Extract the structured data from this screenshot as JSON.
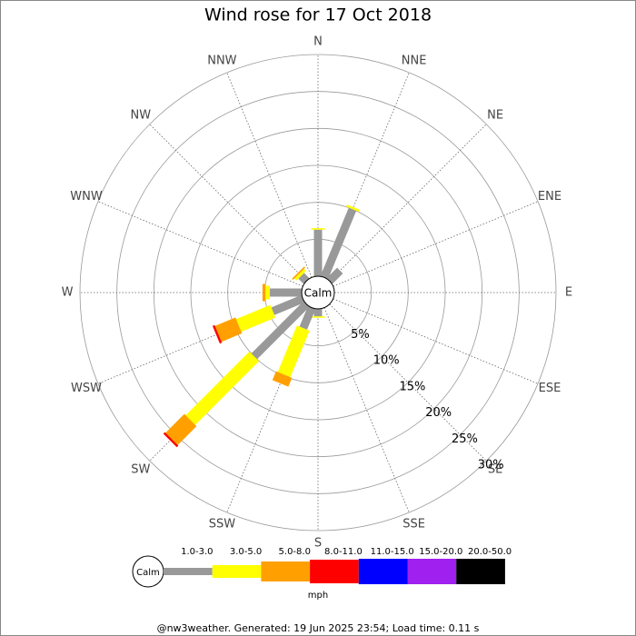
{
  "chart_data": {
    "type": "windrose",
    "title": "Wind rose for 17 Oct 2018",
    "categories": [
      "N",
      "NNE",
      "NE",
      "ENE",
      "E",
      "ESE",
      "SE",
      "SSE",
      "S",
      "SSW",
      "SW",
      "WSW",
      "W",
      "WNW",
      "NW",
      "NNW"
    ],
    "series": [
      {
        "name": "1.0-3.0",
        "color": "#999999",
        "values": [
          6.3,
          10,
          2,
          0,
          0,
          0,
          0,
          0,
          1,
          3,
          10,
          4.4,
          4.3,
          0,
          1,
          0
        ]
      },
      {
        "name": "3.0-5.0",
        "color": "#ffff00",
        "values": [
          0.2,
          0.3,
          0,
          0,
          0,
          0,
          0,
          0,
          0.2,
          6.8,
          12.2,
          5,
          0.6,
          0,
          0.4,
          0
        ]
      },
      {
        "name": "5.0-8.0",
        "color": "#ffa000",
        "values": [
          0,
          0,
          0,
          0,
          0,
          0,
          0,
          0,
          0,
          1.3,
          3.6,
          3,
          0.4,
          0,
          0.2,
          0
        ]
      },
      {
        "name": "8.0-11.0",
        "color": "#ff0000",
        "values": [
          0,
          0,
          0,
          0,
          0,
          0,
          0,
          0,
          0,
          0,
          0.3,
          0.3,
          0,
          0,
          0,
          0
        ]
      },
      {
        "name": "11.0-15.0",
        "color": "#0000ff",
        "values": [
          0,
          0,
          0,
          0,
          0,
          0,
          0,
          0,
          0,
          0,
          0,
          0,
          0,
          0,
          0,
          0
        ]
      },
      {
        "name": "15.0-20.0",
        "color": "#a020f0",
        "values": [
          0,
          0,
          0,
          0,
          0,
          0,
          0,
          0,
          0,
          0,
          0,
          0,
          0,
          0,
          0,
          0
        ]
      },
      {
        "name": "20.0-50.0",
        "color": "#000000",
        "values": [
          0,
          0,
          0,
          0,
          0,
          0,
          0,
          0,
          0,
          0,
          0,
          0,
          0,
          0,
          0,
          0
        ]
      }
    ],
    "rlim": [
      0,
      30
    ],
    "rticks": [
      {
        "value": 5,
        "label": "5%"
      },
      {
        "value": 10,
        "label": "10%"
      },
      {
        "value": 15,
        "label": "15%"
      },
      {
        "value": 20,
        "label": "20%"
      },
      {
        "value": 25,
        "label": "25%"
      },
      {
        "value": 30,
        "label": "30%"
      }
    ],
    "center_label": "Calm",
    "unit": "mph",
    "footer": "@nw3weather. Generated: 19 Jun 2025 23:54; Load time: 0.11 s"
  }
}
